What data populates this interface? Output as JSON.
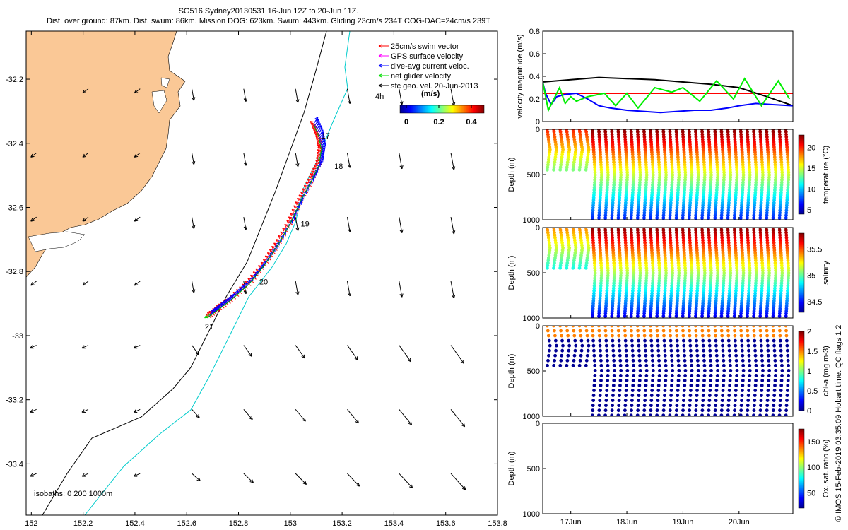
{
  "header": {
    "line1": "SG516 Sydney20130531 16-Jun 12Z to 20-Jun 11Z.",
    "line2": "Dist. over ground: 87km. Dist. swum: 86km. Mission DOG: 623km. Swum: 443km. Gliding 23cm/s 234T COG-DAC=24cm/s 239T"
  },
  "map": {
    "x_ticks": [
      "152",
      "152.2",
      "152.4",
      "152.6",
      "152.8",
      "153",
      "153.2",
      "153.4",
      "153.6",
      "153.8"
    ],
    "y_ticks": [
      "-32.2",
      "-32.4",
      "-32.6",
      "-32.8",
      "-33",
      "-33.2",
      "-33.4"
    ],
    "xlim": [
      151.98,
      153.8
    ],
    "ylim": [
      -33.56,
      -32.05
    ],
    "legend": [
      {
        "label": "25cm/s swim vector",
        "color": "#ff0000"
      },
      {
        "label": "GPS surface velocity",
        "color": "#ff00ff"
      },
      {
        "label": "dive-avg current veloc.",
        "color": "#0000ff"
      },
      {
        "label": "net glider velocity",
        "color": "#00dd00"
      },
      {
        "label": "sfc geo. vel. 20-Jun-2013",
        "color": "#000000"
      }
    ],
    "legend_note": "4h",
    "colorbar_label": "(m/s)",
    "colorbar_ticks": [
      "0",
      "0.2",
      "0.4"
    ],
    "day_labels": [
      "17",
      "18",
      "19",
      "20",
      "21"
    ],
    "isobath_text": "isobaths: 0    200   1000m"
  },
  "chart_data": [
    {
      "type": "line",
      "ylabel": "velocity magnitude (m/s)",
      "ylim": [
        0,
        0.8
      ],
      "y_ticks": [
        "0",
        "0.2",
        "0.4",
        "0.6",
        "0.8"
      ],
      "x_ticks": [
        "17Jun",
        "18Jun",
        "19Jun",
        "20Jun"
      ],
      "series": [
        {
          "name": "25cm/s swim reference",
          "color": "#ff0000",
          "x": [
            16.5,
            20.96
          ],
          "values": [
            0.25,
            0.25
          ]
        },
        {
          "name": "sfc geo. vel.",
          "color": "#000000",
          "x": [
            16.5,
            17.0,
            17.5,
            18.0,
            18.5,
            19.0,
            19.5,
            20.0,
            20.5,
            20.96
          ],
          "values": [
            0.35,
            0.37,
            0.39,
            0.38,
            0.37,
            0.35,
            0.33,
            0.3,
            0.22,
            0.14
          ]
        },
        {
          "name": "dive-avg current",
          "color": "#0000ff",
          "x": [
            16.5,
            16.55,
            16.65,
            16.75,
            16.9,
            17.1,
            17.3,
            17.5,
            17.7,
            18.0,
            18.3,
            18.6,
            18.9,
            19.2,
            19.5,
            19.8,
            20.0,
            20.3,
            20.6,
            20.96
          ],
          "values": [
            0.35,
            0.25,
            0.15,
            0.22,
            0.24,
            0.25,
            0.2,
            0.14,
            0.12,
            0.1,
            0.09,
            0.08,
            0.09,
            0.1,
            0.1,
            0.12,
            0.14,
            0.16,
            0.15,
            0.14
          ]
        },
        {
          "name": "net glider velocity",
          "color": "#00ee00",
          "x": [
            16.5,
            16.6,
            16.7,
            16.8,
            16.9,
            17.0,
            17.1,
            17.3,
            17.6,
            17.8,
            18.0,
            18.2,
            18.5,
            18.8,
            19.0,
            19.3,
            19.6,
            19.9,
            20.1,
            20.4,
            20.7,
            20.9
          ],
          "values": [
            0.35,
            0.1,
            0.2,
            0.3,
            0.16,
            0.22,
            0.18,
            0.22,
            0.25,
            0.14,
            0.25,
            0.12,
            0.3,
            0.26,
            0.3,
            0.18,
            0.36,
            0.2,
            0.38,
            0.14,
            0.36,
            0.2
          ]
        }
      ]
    },
    {
      "type": "scatter",
      "name": "temperature section",
      "ylabel": "Depth (m)",
      "ylim": [
        1000,
        0
      ],
      "y_ticks": [
        "0",
        "500",
        "1000"
      ],
      "colorbar_label": "temperature (°C)",
      "colorbar_ticks": [
        "5",
        "10",
        "15",
        "20"
      ],
      "clim": [
        4,
        23
      ]
    },
    {
      "type": "scatter",
      "name": "salinity section",
      "ylabel": "Depth (m)",
      "ylim": [
        1000,
        0
      ],
      "y_ticks": [
        "0",
        "500",
        "1000"
      ],
      "colorbar_label": "salinity",
      "colorbar_ticks": [
        "34.5",
        "35",
        "35.5"
      ],
      "clim": [
        34.3,
        35.8
      ]
    },
    {
      "type": "scatter",
      "name": "chlorophyll section",
      "ylabel": "Depth (m)",
      "ylim": [
        1000,
        0
      ],
      "y_ticks": [
        "0",
        "500",
        "1000"
      ],
      "colorbar_label": "chl-a (mg m-3)",
      "colorbar_ticks": [
        "0",
        "0.5",
        "1",
        "1.5",
        "2"
      ],
      "clim": [
        0,
        2
      ]
    },
    {
      "type": "scatter",
      "name": "oxygen section",
      "ylabel": "Depth (m)",
      "ylim": [
        1000,
        0
      ],
      "y_ticks": [
        "0",
        "500",
        "1000"
      ],
      "colorbar_label": "Ox. sat. ratio (%)",
      "colorbar_ticks": [
        "50",
        "100",
        "150"
      ],
      "clim": [
        20,
        175
      ]
    }
  ],
  "footer": {
    "credit": "© IMOS 15-Feb-2019 03:35:09 Hobart time. QC flags 1  2"
  }
}
